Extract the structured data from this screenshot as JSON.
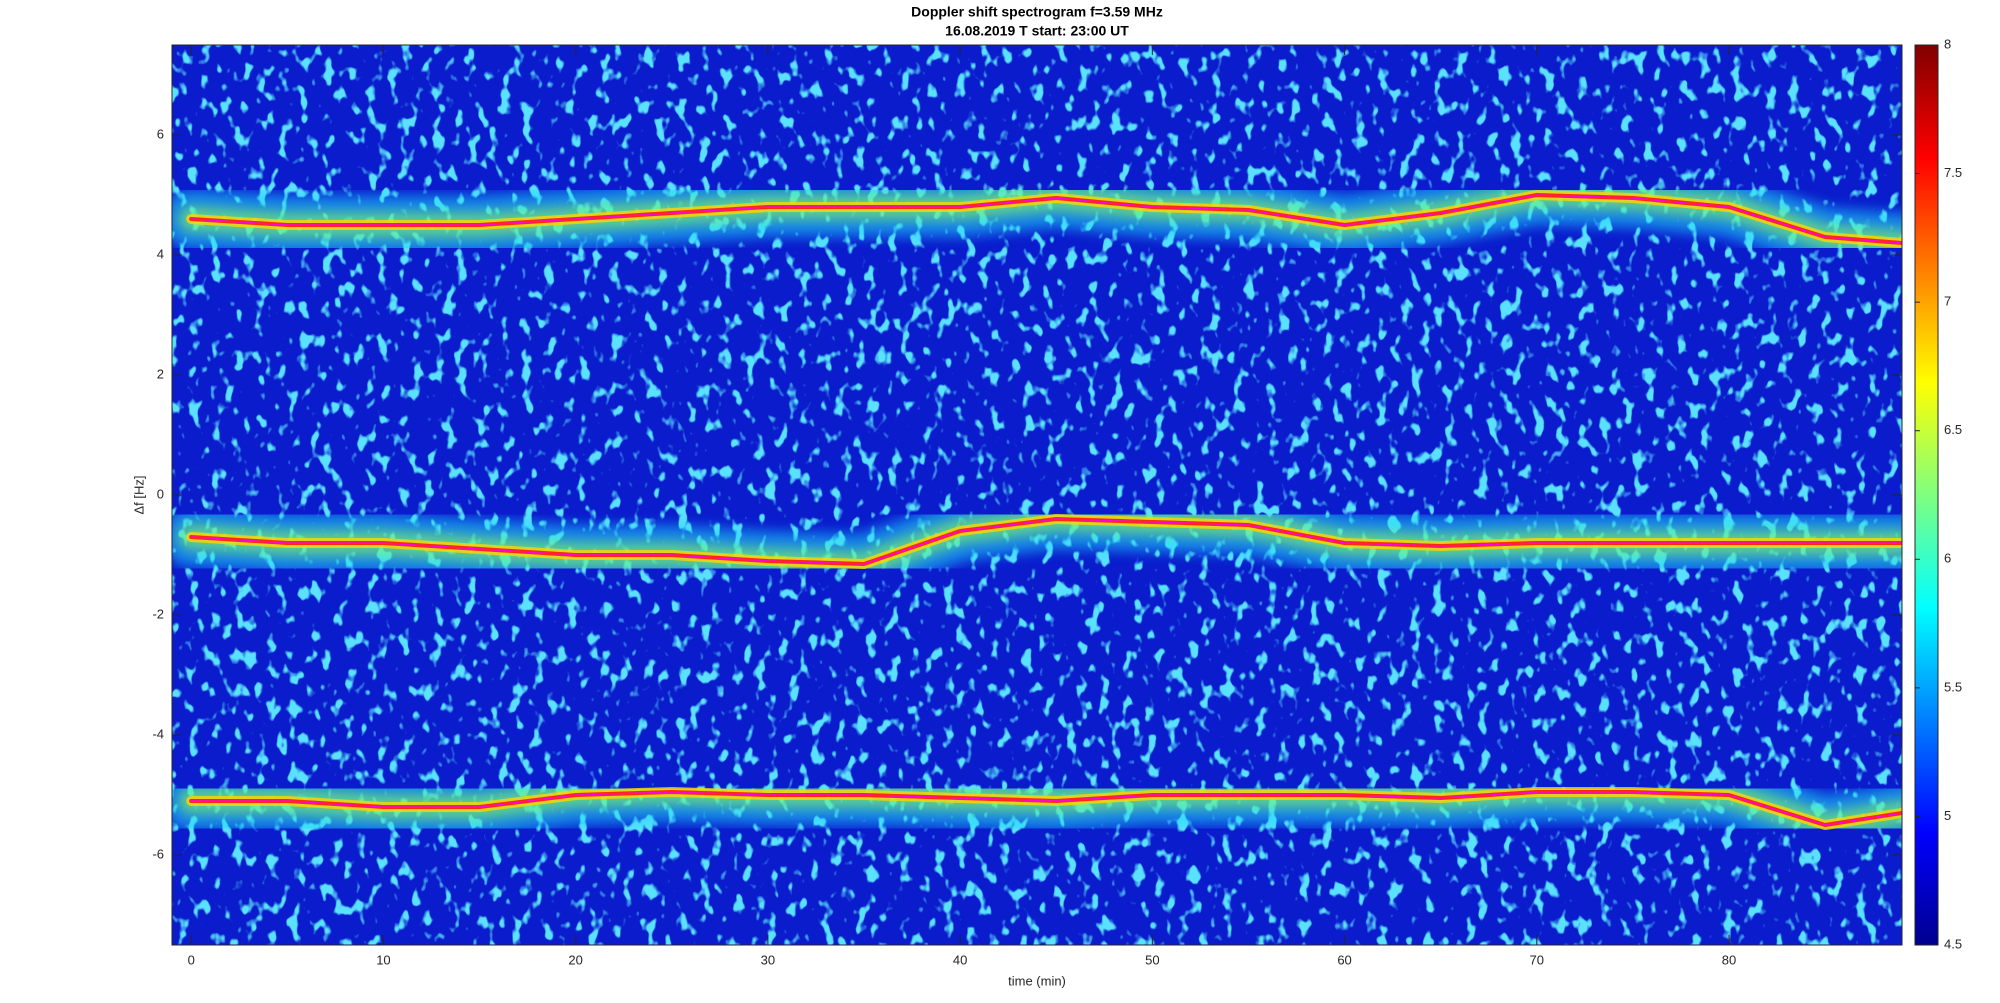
{
  "chart_data": {
    "type": "spectrogram",
    "title": "Doppler shift spectrogram f=3.59 MHz",
    "subtitle": "16.08.2019    T start: 23:00 UT",
    "xlabel": "time (min)",
    "ylabel": "Δf [Hz]",
    "xlim": [
      -1,
      89
    ],
    "xticks": [
      0,
      10,
      20,
      30,
      40,
      50,
      60,
      70,
      80
    ],
    "ylim": [
      -7.5,
      7.5
    ],
    "yticks": [
      -6,
      -4,
      -2,
      0,
      2,
      4,
      6
    ],
    "clim": [
      4.5,
      8
    ],
    "cticks": [
      4.5,
      5,
      5.5,
      6,
      6.5,
      7,
      7.5,
      8
    ],
    "colormap": "jet",
    "x": [
      0,
      5,
      10,
      15,
      20,
      25,
      30,
      35,
      40,
      45,
      50,
      55,
      60,
      65,
      70,
      75,
      80,
      85,
      89
    ],
    "series": [
      {
        "color": "#ff00ff",
        "values": [
          4.6,
          4.5,
          4.5,
          4.5,
          4.6,
          4.7,
          4.8,
          4.8,
          4.8,
          4.95,
          4.8,
          4.75,
          4.5,
          4.7,
          5.0,
          4.95,
          4.8,
          4.3,
          4.2
        ]
      },
      {
        "color": "#ff00ff",
        "values": [
          -0.7,
          -0.8,
          -0.8,
          -0.9,
          -1.0,
          -1.0,
          -1.1,
          -1.15,
          -0.6,
          -0.4,
          -0.45,
          -0.5,
          -0.8,
          -0.85,
          -0.8,
          -0.8,
          -0.8,
          -0.8,
          -0.8
        ]
      },
      {
        "color": "#ff00ff",
        "values": [
          -5.1,
          -5.1,
          -5.2,
          -5.2,
          -5.0,
          -4.95,
          -5.0,
          -5.0,
          -5.05,
          -5.1,
          -5.0,
          -5.0,
          -5.0,
          -5.05,
          -4.95,
          -4.95,
          -5.0,
          -5.5,
          -5.3
        ]
      }
    ]
  }
}
